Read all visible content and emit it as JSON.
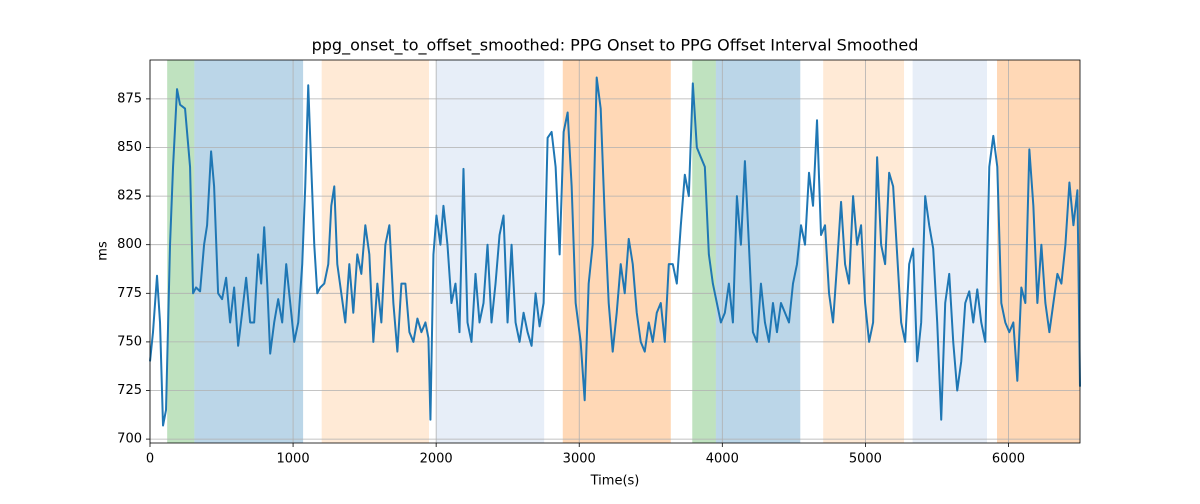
{
  "chart_data": {
    "type": "line",
    "title": "ppg_onset_to_offset_smoothed: PPG Onset to PPG Offset Interval Smoothed",
    "xlabel": "Time(s)",
    "ylabel": "ms",
    "xlim": [
      0,
      6500
    ],
    "xticks": [
      0,
      1000,
      2000,
      3000,
      4000,
      5000,
      6000
    ],
    "ylim": [
      698,
      895
    ],
    "yticks": [
      700,
      725,
      750,
      775,
      800,
      825,
      850,
      875
    ],
    "grid": true,
    "spans": [
      {
        "start": 120,
        "end": 310,
        "color": "#2ca02c",
        "alpha": 0.3
      },
      {
        "start": 310,
        "end": 1070,
        "color": "#1f77b4",
        "alpha": 0.3
      },
      {
        "start": 1200,
        "end": 1950,
        "color": "#ffbb78",
        "alpha": 0.3
      },
      {
        "start": 2000,
        "end": 2755,
        "color": "#aec7e8",
        "alpha": 0.3
      },
      {
        "start": 2885,
        "end": 3640,
        "color": "#ff7f0e",
        "alpha": 0.3
      },
      {
        "start": 3790,
        "end": 3955,
        "color": "#2ca02c",
        "alpha": 0.3
      },
      {
        "start": 3955,
        "end": 4545,
        "color": "#1f77b4",
        "alpha": 0.3
      },
      {
        "start": 4705,
        "end": 5270,
        "color": "#ffbb78",
        "alpha": 0.3
      },
      {
        "start": 5330,
        "end": 5850,
        "color": "#aec7e8",
        "alpha": 0.3
      },
      {
        "start": 5920,
        "end": 6500,
        "color": "#ff7f0e",
        "alpha": 0.3
      }
    ],
    "series": [
      {
        "color": "#1f77b4",
        "x": [
          0,
          21,
          49,
          70,
          91,
          112,
          140,
          161,
          189,
          210,
          245,
          280,
          301,
          322,
          350,
          378,
          399,
          427,
          448,
          476,
          504,
          532,
          560,
          588,
          616,
          644,
          672,
          700,
          728,
          756,
          777,
          798,
          819,
          840,
          868,
          896,
          924,
          952,
          980,
          1008,
          1036,
          1064,
          1085,
          1106,
          1127,
          1148,
          1169,
          1190,
          1218,
          1246,
          1267,
          1288,
          1309,
          1337,
          1365,
          1393,
          1421,
          1449,
          1477,
          1505,
          1533,
          1561,
          1589,
          1617,
          1645,
          1673,
          1701,
          1729,
          1757,
          1785,
          1813,
          1841,
          1869,
          1897,
          1925,
          1946,
          1960,
          1981,
          2002,
          2030,
          2051,
          2079,
          2107,
          2135,
          2163,
          2191,
          2219,
          2247,
          2275,
          2303,
          2331,
          2359,
          2387,
          2415,
          2443,
          2471,
          2499,
          2527,
          2555,
          2583,
          2611,
          2639,
          2667,
          2695,
          2723,
          2751,
          2779,
          2807,
          2835,
          2863,
          2891,
          2919,
          2947,
          2975,
          3010,
          3038,
          3066,
          3094,
          3122,
          3150,
          3178,
          3206,
          3234,
          3262,
          3290,
          3318,
          3346,
          3374,
          3402,
          3430,
          3458,
          3486,
          3514,
          3542,
          3570,
          3598,
          3626,
          3654,
          3682,
          3710,
          3738,
          3766,
          3794,
          3822,
          3850,
          3878,
          3906,
          3934,
          3962,
          3990,
          4018,
          4046,
          4074,
          4102,
          4130,
          4158,
          4186,
          4214,
          4242,
          4270,
          4298,
          4326,
          4354,
          4382,
          4410,
          4438,
          4466,
          4494,
          4522,
          4550,
          4578,
          4606,
          4634,
          4662,
          4690,
          4718,
          4746,
          4774,
          4802,
          4830,
          4858,
          4886,
          4914,
          4942,
          4970,
          4998,
          5026,
          5054,
          5082,
          5110,
          5138,
          5166,
          5194,
          5222,
          5250,
          5278,
          5306,
          5334,
          5362,
          5390,
          5418,
          5446,
          5474,
          5502,
          5530,
          5558,
          5586,
          5614,
          5642,
          5670,
          5698,
          5726,
          5754,
          5782,
          5810,
          5838,
          5866,
          5894,
          5922,
          5950,
          5978,
          6006,
          6034,
          6062,
          6090,
          6118,
          6146,
          6174,
          6202,
          6230,
          6258,
          6286,
          6314,
          6342,
          6370,
          6398,
          6426,
          6454,
          6482,
          6500
        ],
        "values": [
          740,
          755,
          784,
          760,
          707,
          715,
          800,
          840,
          880,
          872,
          870,
          840,
          775,
          778,
          776,
          800,
          810,
          848,
          830,
          775,
          772,
          783,
          760,
          778,
          748,
          765,
          783,
          760,
          760,
          795,
          780,
          809,
          780,
          744,
          760,
          772,
          760,
          790,
          770,
          750,
          760,
          790,
          830,
          882,
          840,
          800,
          775,
          778,
          780,
          790,
          820,
          830,
          790,
          775,
          760,
          790,
          765,
          795,
          785,
          810,
          795,
          750,
          780,
          760,
          800,
          810,
          770,
          745,
          780,
          780,
          755,
          750,
          762,
          755,
          760,
          752,
          710,
          795,
          815,
          800,
          820,
          800,
          770,
          780,
          755,
          839,
          760,
          750,
          785,
          760,
          770,
          800,
          760,
          780,
          805,
          815,
          760,
          800,
          760,
          750,
          765,
          755,
          748,
          775,
          758,
          770,
          855,
          858,
          840,
          795,
          858,
          868,
          830,
          770,
          750,
          720,
          780,
          800,
          886,
          870,
          815,
          770,
          745,
          765,
          790,
          775,
          803,
          790,
          765,
          750,
          745,
          760,
          750,
          765,
          770,
          750,
          790,
          790,
          780,
          810,
          836,
          825,
          883,
          850,
          845,
          840,
          795,
          780,
          770,
          760,
          765,
          780,
          760,
          825,
          800,
          843,
          800,
          755,
          750,
          780,
          760,
          750,
          770,
          755,
          770,
          765,
          760,
          780,
          790,
          810,
          800,
          837,
          820,
          864,
          805,
          810,
          775,
          760,
          790,
          822,
          790,
          780,
          825,
          800,
          810,
          770,
          750,
          760,
          845,
          800,
          790,
          837,
          830,
          795,
          760,
          750,
          790,
          798,
          740,
          760,
          825,
          810,
          798,
          760,
          710,
          770,
          785,
          750,
          725,
          740,
          770,
          776,
          760,
          777,
          760,
          750,
          840,
          856,
          840,
          770,
          760,
          755,
          760,
          730,
          778,
          770,
          849,
          820,
          770,
          800,
          770,
          755,
          770,
          785,
          780,
          800,
          832,
          810,
          828,
          727
        ]
      }
    ]
  }
}
